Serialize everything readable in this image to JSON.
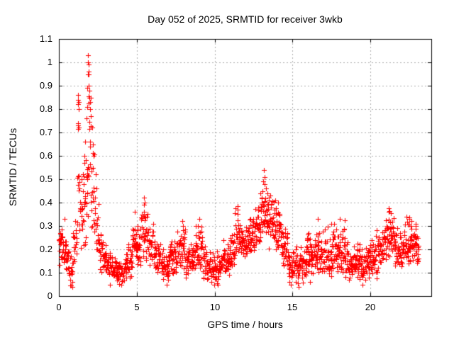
{
  "window": {
    "background": "#ffffff",
    "border_color": "#000000",
    "text_color": "#000000"
  },
  "chart_data": {
    "type": "scatter",
    "title": "Day 052 of 2025, SRMTID for receiver 3wkb",
    "xlabel": "GPS time / hours",
    "ylabel": "SRMTID / TECUs",
    "xlim": [
      0,
      23.9
    ],
    "ylim": [
      0,
      1.1
    ],
    "xticks": [
      0,
      5,
      10,
      15,
      20
    ],
    "xtick_labels": [
      "0",
      "5",
      "10",
      "15",
      "20"
    ],
    "yticks": [
      0,
      0.1,
      0.2,
      0.3,
      0.4,
      0.5,
      0.6,
      0.7,
      0.8,
      0.9,
      1,
      1.1
    ],
    "ytick_labels": [
      "0",
      "0.1",
      "0.2",
      "0.3",
      "0.4",
      "0.5",
      "0.6",
      "0.7",
      "0.8",
      "0.9",
      "1",
      "1.1"
    ],
    "grid": {
      "show": true,
      "color": "#acacac",
      "dash": [
        2,
        3
      ]
    },
    "marker": {
      "shape": "plus",
      "color": "#ff0000",
      "size": 7
    },
    "legend": {
      "show": false
    },
    "series": [
      {
        "name": "SRMTID",
        "seed": 20250052,
        "note": "dense 30s scatter; segments = [t_start_h, t_end_h, y_min, y_max, points_per_hour] envelope read from plot",
        "segments": [
          [
            0.0,
            0.3,
            0.12,
            0.31,
            70
          ],
          [
            0.3,
            0.6,
            0.1,
            0.27,
            65
          ],
          [
            0.6,
            0.9,
            0.04,
            0.22,
            60
          ],
          [
            0.9,
            1.15,
            0.12,
            0.35,
            65
          ],
          [
            1.15,
            1.35,
            0.18,
            0.86,
            55
          ],
          [
            1.35,
            1.6,
            0.15,
            0.55,
            55
          ],
          [
            1.6,
            1.8,
            0.22,
            0.72,
            55
          ],
          [
            1.8,
            2.1,
            0.28,
            1.0,
            55
          ],
          [
            2.1,
            2.35,
            0.22,
            0.68,
            55
          ],
          [
            2.35,
            2.6,
            0.15,
            0.45,
            60
          ],
          [
            2.6,
            3.0,
            0.09,
            0.3,
            60
          ],
          [
            3.0,
            3.6,
            0.06,
            0.2,
            60
          ],
          [
            3.6,
            4.3,
            0.05,
            0.17,
            60
          ],
          [
            4.3,
            4.7,
            0.08,
            0.22,
            60
          ],
          [
            4.7,
            5.0,
            0.1,
            0.34,
            60
          ],
          [
            5.0,
            5.25,
            0.12,
            0.3,
            62
          ],
          [
            5.25,
            5.75,
            0.14,
            0.42,
            62
          ],
          [
            5.75,
            6.2,
            0.12,
            0.33,
            62
          ],
          [
            6.2,
            6.6,
            0.1,
            0.26,
            62
          ],
          [
            6.6,
            7.1,
            0.06,
            0.22,
            62
          ],
          [
            7.1,
            7.6,
            0.09,
            0.28,
            62
          ],
          [
            7.6,
            8.1,
            0.1,
            0.31,
            62
          ],
          [
            8.1,
            8.7,
            0.08,
            0.26,
            62
          ],
          [
            8.7,
            9.2,
            0.1,
            0.32,
            62
          ],
          [
            9.2,
            9.7,
            0.07,
            0.24,
            62
          ],
          [
            9.7,
            10.4,
            0.05,
            0.2,
            62
          ],
          [
            10.4,
            11.0,
            0.08,
            0.25,
            62
          ],
          [
            11.0,
            11.3,
            0.1,
            0.3,
            62
          ],
          [
            11.3,
            11.6,
            0.14,
            0.38,
            62
          ],
          [
            11.6,
            12.1,
            0.15,
            0.33,
            65
          ],
          [
            12.1,
            12.6,
            0.17,
            0.36,
            65
          ],
          [
            12.6,
            12.95,
            0.2,
            0.42,
            65
          ],
          [
            12.95,
            13.45,
            0.22,
            0.52,
            65
          ],
          [
            13.45,
            13.85,
            0.2,
            0.44,
            65
          ],
          [
            13.85,
            14.25,
            0.17,
            0.42,
            65
          ],
          [
            14.25,
            14.7,
            0.12,
            0.32,
            62
          ],
          [
            14.7,
            15.3,
            0.06,
            0.25,
            62
          ],
          [
            15.3,
            15.9,
            0.05,
            0.22,
            62
          ],
          [
            15.9,
            16.5,
            0.08,
            0.28,
            62
          ],
          [
            16.5,
            17.0,
            0.09,
            0.31,
            62
          ],
          [
            17.0,
            17.6,
            0.08,
            0.3,
            62
          ],
          [
            17.6,
            18.1,
            0.09,
            0.32,
            62
          ],
          [
            18.1,
            18.6,
            0.08,
            0.31,
            62
          ],
          [
            18.6,
            19.2,
            0.06,
            0.24,
            62
          ],
          [
            19.2,
            19.9,
            0.06,
            0.22,
            62
          ],
          [
            19.9,
            20.4,
            0.08,
            0.26,
            62
          ],
          [
            20.4,
            20.9,
            0.1,
            0.31,
            62
          ],
          [
            20.9,
            21.55,
            0.15,
            0.37,
            68
          ],
          [
            21.55,
            22.05,
            0.12,
            0.3,
            65
          ],
          [
            22.05,
            22.65,
            0.14,
            0.34,
            68
          ],
          [
            22.65,
            23.09,
            0.13,
            0.3,
            68
          ]
        ],
        "points": [
          [
            1.87,
            1.03
          ],
          [
            1.88,
            1.0
          ],
          [
            1.9,
            0.99
          ],
          [
            1.86,
            0.95
          ],
          [
            1.89,
            0.95
          ],
          [
            1.91,
            0.96
          ],
          [
            1.93,
            0.9
          ],
          [
            1.95,
            0.88
          ],
          [
            1.84,
            0.89
          ],
          [
            1.97,
            0.85
          ],
          [
            1.99,
            0.83
          ],
          [
            2.02,
            0.8
          ],
          [
            2.05,
            0.77
          ],
          [
            1.82,
            0.81
          ],
          [
            1.79,
            0.76
          ],
          [
            1.25,
            0.86
          ],
          [
            1.22,
            0.84
          ],
          [
            1.27,
            0.83
          ],
          [
            1.24,
            0.82
          ],
          [
            1.29,
            0.8
          ],
          [
            1.23,
            0.74
          ],
          [
            1.26,
            0.72
          ],
          [
            1.21,
            0.73
          ],
          [
            2.12,
            0.72
          ],
          [
            2.18,
            0.65
          ],
          [
            2.25,
            0.6
          ],
          [
            1.7,
            0.66
          ],
          [
            1.65,
            0.6
          ],
          [
            1.55,
            0.52
          ],
          [
            1.45,
            0.5
          ],
          [
            2.35,
            0.52
          ],
          [
            2.42,
            0.46
          ],
          [
            0.35,
            0.33
          ],
          [
            0.75,
            0.045
          ],
          [
            3.3,
            0.05
          ],
          [
            4.0,
            0.05
          ],
          [
            4.85,
            0.36
          ],
          [
            5.48,
            0.42
          ],
          [
            5.52,
            0.4
          ],
          [
            5.45,
            0.39
          ],
          [
            6.9,
            0.05
          ],
          [
            7.9,
            0.32
          ],
          [
            9.0,
            0.33
          ],
          [
            9.95,
            0.05
          ],
          [
            10.15,
            0.055
          ],
          [
            11.45,
            0.385
          ],
          [
            13.15,
            0.54
          ],
          [
            13.18,
            0.51
          ],
          [
            13.1,
            0.49
          ],
          [
            13.22,
            0.48
          ],
          [
            13.28,
            0.46
          ],
          [
            13.05,
            0.45
          ],
          [
            12.92,
            0.44
          ],
          [
            13.4,
            0.44
          ],
          [
            13.55,
            0.43
          ],
          [
            13.9,
            0.41
          ],
          [
            14.05,
            0.4
          ],
          [
            14.9,
            0.05
          ],
          [
            15.4,
            0.04
          ],
          [
            16.1,
            0.06
          ],
          [
            16.6,
            0.33
          ],
          [
            17.5,
            0.31
          ],
          [
            18.05,
            0.33
          ],
          [
            18.35,
            0.325
          ],
          [
            19.5,
            0.05
          ],
          [
            20.4,
            0.075
          ],
          [
            21.15,
            0.375
          ],
          [
            21.22,
            0.365
          ],
          [
            21.3,
            0.355
          ],
          [
            22.3,
            0.34
          ],
          [
            22.5,
            0.335
          ],
          [
            22.9,
            0.31
          ],
          [
            23.05,
            0.25
          ]
        ]
      }
    ]
  }
}
